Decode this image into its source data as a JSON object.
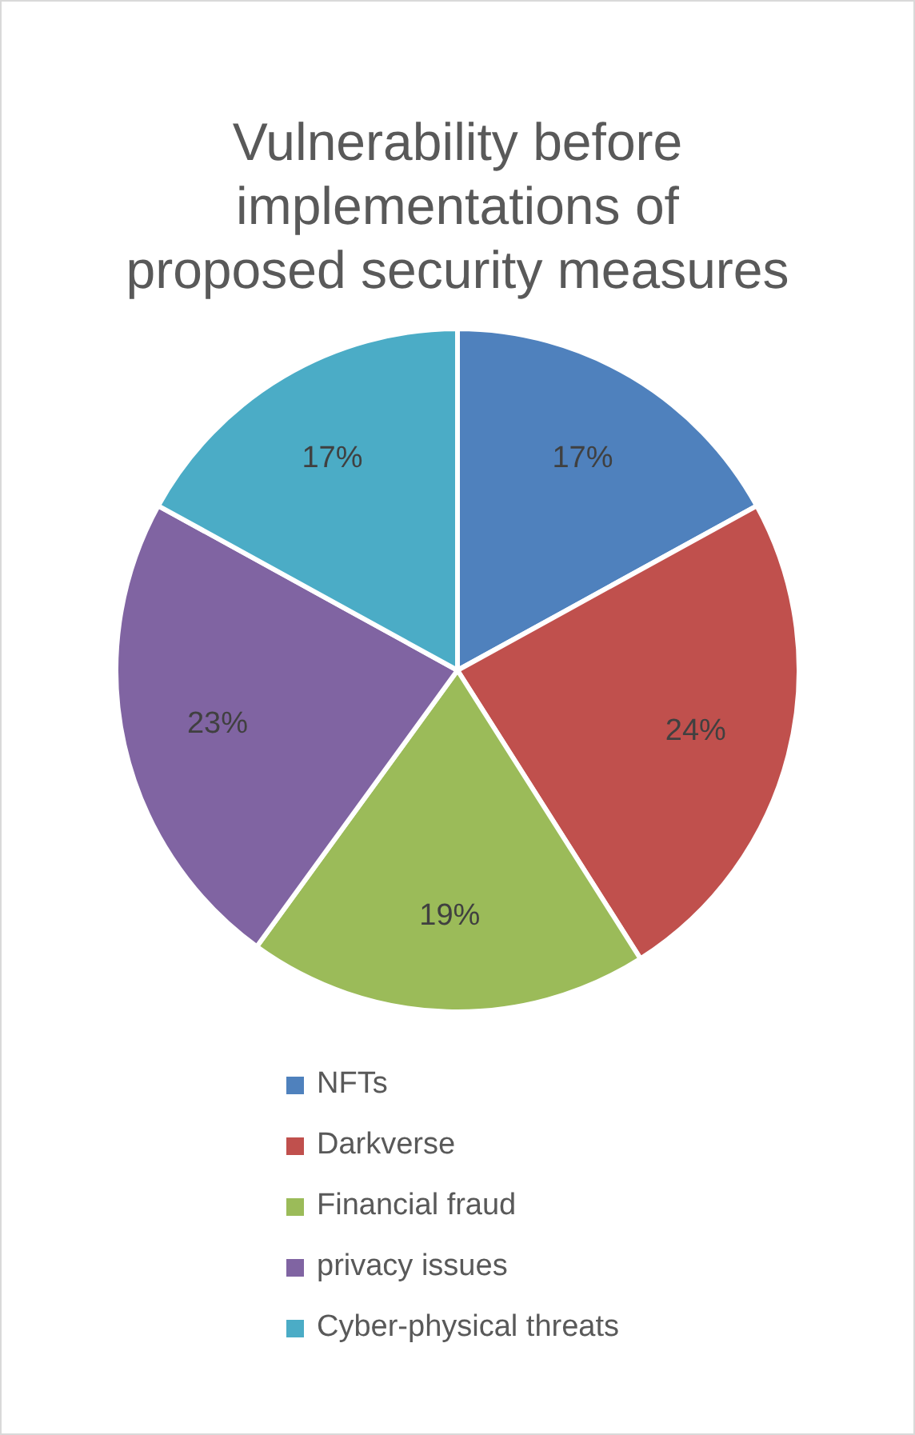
{
  "chart_data": {
    "type": "pie",
    "title": "Vulnerability before implementations of proposed security measures",
    "categories": [
      "NFTs",
      "Darkverse",
      "Financial fraud",
      "privacy issues",
      "Cyber-physical threats"
    ],
    "values": [
      17,
      24,
      19,
      23,
      17
    ],
    "value_labels": [
      "17%",
      "24%",
      "19%",
      "23%",
      "17%"
    ],
    "colors": [
      "#4f81bd",
      "#c0504d",
      "#9bbb59",
      "#8064a2",
      "#4bacc6"
    ],
    "legend": "bottom"
  }
}
